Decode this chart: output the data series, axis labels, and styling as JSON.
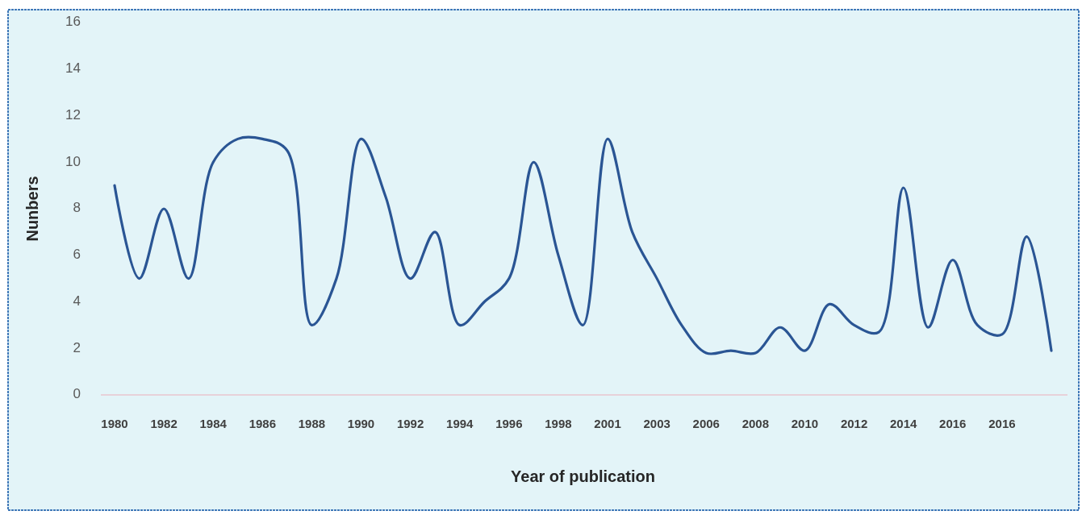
{
  "chart_data": {
    "type": "line",
    "xlabel": "Year of publication",
    "ylabel": "Nunbers",
    "categories": [
      "1980",
      null,
      "1982",
      null,
      "1984",
      null,
      "1986",
      null,
      "1988",
      null,
      "1990",
      null,
      "1992",
      null,
      "1994",
      null,
      "1996",
      null,
      "1998",
      null,
      "2001",
      null,
      "2003",
      null,
      "2006",
      null,
      "2008",
      null,
      "2010",
      null,
      "2012",
      null,
      "2014",
      null,
      "2016",
      null,
      "2016",
      null,
      null
    ],
    "series": [
      {
        "color": "#2a5594",
        "values": [
          9,
          5,
          8,
          5,
          10,
          11,
          11,
          10.5,
          3,
          5,
          11,
          8.5,
          5,
          7,
          3,
          4,
          5,
          10,
          6,
          3,
          11,
          7,
          5,
          3,
          1.8,
          1.9,
          1.8,
          2.9,
          1.9,
          3.9,
          3,
          2.7,
          8.9,
          2.9,
          5.8,
          3,
          2.6,
          6.8,
          1.9
        ]
      }
    ],
    "ylim": [
      0,
      16
    ],
    "yticks": [
      0,
      2,
      4,
      6,
      8,
      10,
      12,
      14,
      16
    ],
    "grid": false
  }
}
